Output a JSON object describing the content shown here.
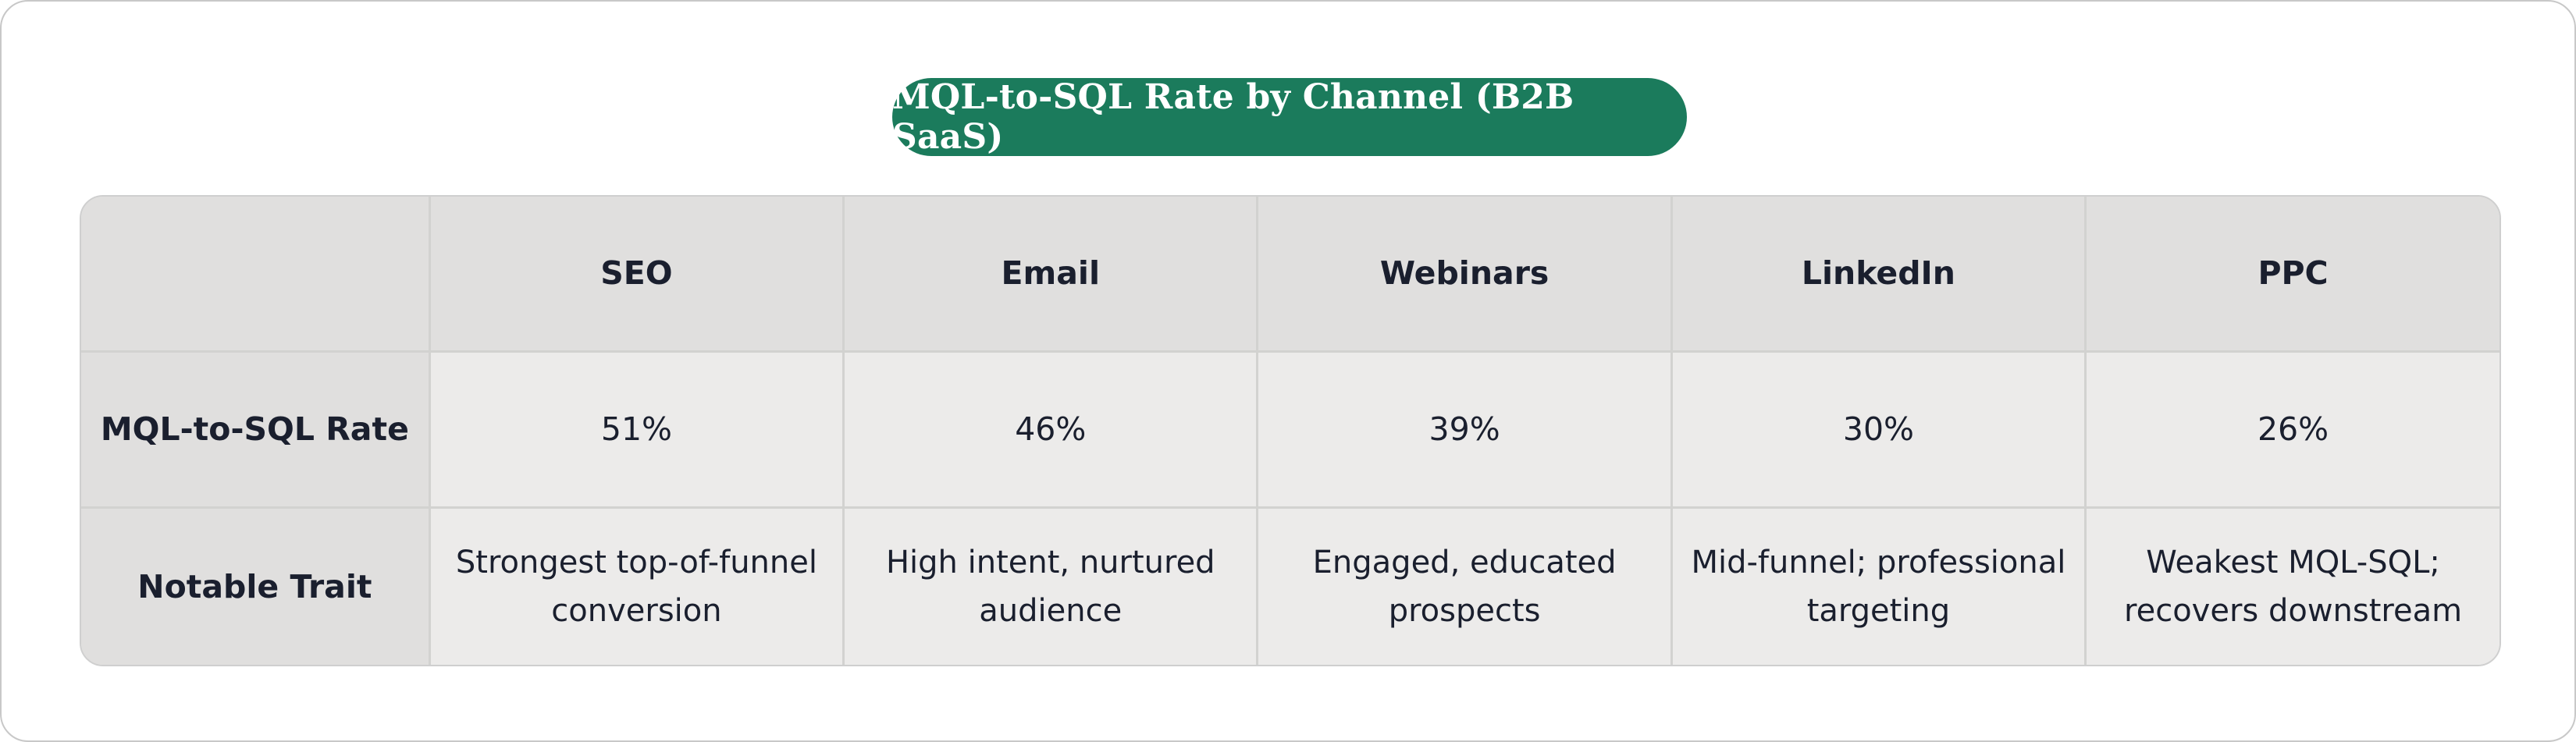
{
  "chart_data": {
    "type": "table",
    "title": "MQL-to-SQL Rate by Channel (B2B SaaS)",
    "columns": [
      "SEO",
      "Email",
      "Webinars",
      "LinkedIn",
      "PPC"
    ],
    "rows": [
      {
        "label": "MQL-to-SQL Rate",
        "values": [
          "51%",
          "46%",
          "39%",
          "30%",
          "26%"
        ]
      },
      {
        "label": "Notable Trait",
        "values": [
          "Strongest top-of-funnel conversion",
          "High intent, nurtured audience",
          "Engaged, educated prospects",
          "Mid-funnel; professional targeting",
          "Weakest MQL-SQL; recovers downstream"
        ]
      }
    ],
    "colors": {
      "title_background": "#1b7b5c",
      "header_background": "#e0dfde",
      "cell_background": "#ecebea"
    }
  }
}
